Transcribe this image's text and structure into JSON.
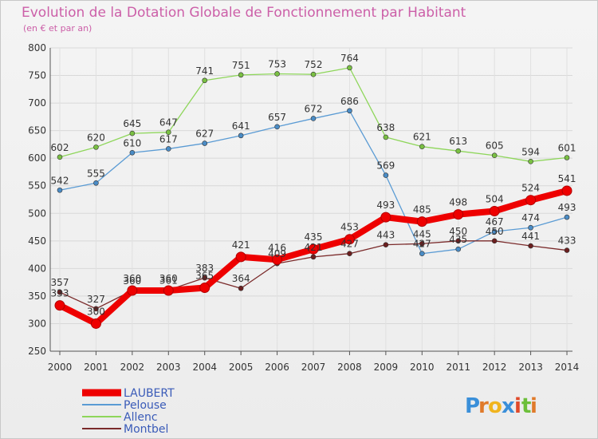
{
  "chart_data": {
    "type": "line",
    "title": "Evolution de la Dotation Globale de Fonctionnement par Habitant",
    "subtitle": "(en € et par an)",
    "xlabel": "",
    "ylabel": "",
    "ylim": [
      250,
      800
    ],
    "yticks": [
      250,
      300,
      350,
      400,
      450,
      500,
      550,
      600,
      650,
      700,
      750,
      800
    ],
    "grid": true,
    "legend_position": "bottom-left",
    "categories": [
      "2000",
      "2001",
      "2002",
      "2003",
      "2004",
      "2005",
      "2006",
      "2007",
      "2008",
      "2009",
      "2010",
      "2011",
      "2012",
      "2013",
      "2014"
    ],
    "series": [
      {
        "name": "Allenc",
        "color": "#8ed65a",
        "marker": "#7ac043",
        "values": [
          602,
          620,
          645,
          647,
          741,
          751,
          753,
          752,
          764,
          638,
          621,
          613,
          605,
          594,
          601
        ]
      },
      {
        "name": "Pelouse",
        "color": "#5a9bd4",
        "marker": "#4a8cc6",
        "values": [
          542,
          555,
          610,
          617,
          627,
          641,
          657,
          672,
          686,
          569,
          427,
          435,
          467,
          474,
          493
        ]
      },
      {
        "name": "Montbel",
        "color": "#7a2a2a",
        "marker": "#6b1f1f",
        "values": [
          357,
          327,
          360,
          361,
          383,
          364,
          409,
          421,
          427,
          443,
          445,
          450,
          450,
          441,
          433
        ]
      },
      {
        "name": "LAUBERT",
        "color": "#ee0000",
        "marker": "#ee0000",
        "values": [
          333,
          300,
          360,
          360,
          365,
          421,
          416,
          435,
          453,
          493,
          485,
          498,
          504,
          524,
          541
        ]
      }
    ]
  },
  "brand": {
    "letters": [
      "P",
      "r",
      "o",
      "x",
      "i",
      "t",
      "i"
    ],
    "colors": [
      "#3a8fd9",
      "#e07a2a",
      "#f0b41e",
      "#3a8fd9",
      "#e04a2a",
      "#6cbf3a",
      "#e07a2a"
    ]
  }
}
